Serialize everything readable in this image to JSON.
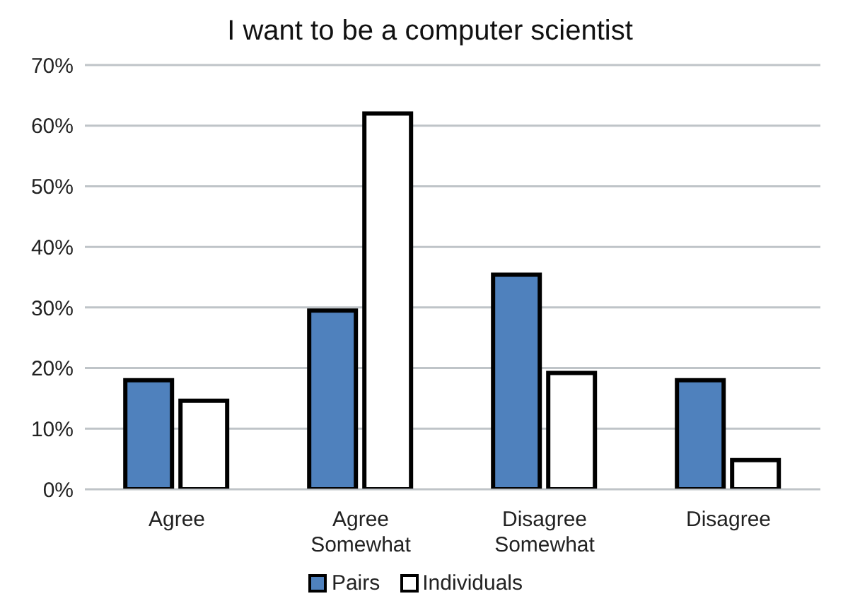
{
  "chart_data": {
    "type": "bar",
    "title": "I want to be a computer scientist",
    "categories": [
      "Agree",
      "Agree Somewhat",
      "Disagree Somewhat",
      "Disagree"
    ],
    "series": [
      {
        "name": "Pairs",
        "color": "#4f81bd",
        "values": [
          18,
          29.5,
          35.4,
          18
        ]
      },
      {
        "name": "Individuals",
        "color": "#ffffff",
        "values": [
          14.6,
          62,
          19.2,
          4.8
        ]
      }
    ],
    "ylim": [
      0,
      70
    ],
    "yticks": [
      {
        "value": 0,
        "label": "0%"
      },
      {
        "value": 10,
        "label": "10%"
      },
      {
        "value": 20,
        "label": "20%"
      },
      {
        "value": 30,
        "label": "30%"
      },
      {
        "value": 40,
        "label": "40%"
      },
      {
        "value": 50,
        "label": "50%"
      },
      {
        "value": 60,
        "label": "60%"
      },
      {
        "value": 70,
        "label": "70%"
      }
    ],
    "grid": "y",
    "legend": "bottom"
  }
}
